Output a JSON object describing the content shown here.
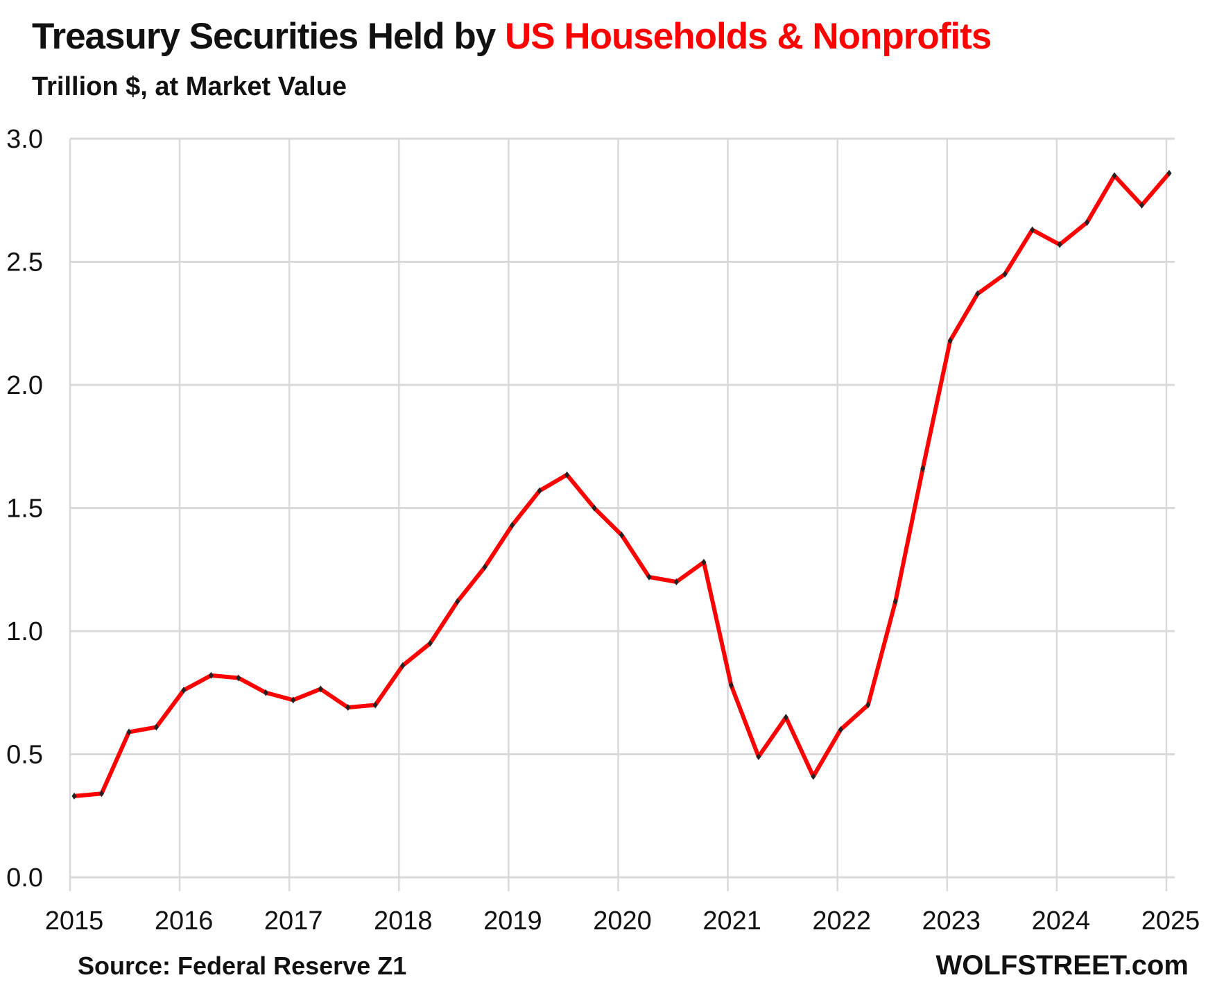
{
  "chart_data": {
    "type": "line",
    "title_part1": "Treasury Securities Held by ",
    "title_part2": "US Households & Nonprofits",
    "subtitle": "Trillion $, at Market Value",
    "source": "Source: Federal Reserve Z1",
    "brand": "WOLFSTREET.com",
    "xlabel": "",
    "ylabel": "",
    "ylim": [
      0,
      3.0
    ],
    "yticks": [
      "0.0",
      "0.5",
      "1.0",
      "1.5",
      "2.0",
      "2.5",
      "3.0"
    ],
    "xticks": [
      "2015",
      "2016",
      "2017",
      "2018",
      "2019",
      "2020",
      "2021",
      "2022",
      "2023",
      "2024",
      "2025"
    ],
    "grid": true,
    "line_color": "#ff0000",
    "marker_color": "#222222",
    "series": [
      {
        "name": "Treasury Securities Held by US Households & Nonprofits",
        "start_year": 2015,
        "frequency": "quarterly",
        "values": [
          0.33,
          0.34,
          0.59,
          0.61,
          0.76,
          0.82,
          0.81,
          0.75,
          0.72,
          0.765,
          0.69,
          0.7,
          0.86,
          0.95,
          1.12,
          1.26,
          1.43,
          1.57,
          1.635,
          1.5,
          1.39,
          1.22,
          1.2,
          1.28,
          0.78,
          0.49,
          0.65,
          0.41,
          0.6,
          0.7,
          1.12,
          1.66,
          2.18,
          2.37,
          2.45,
          2.63,
          2.57,
          2.66,
          2.85,
          2.73,
          2.86
        ]
      }
    ]
  }
}
